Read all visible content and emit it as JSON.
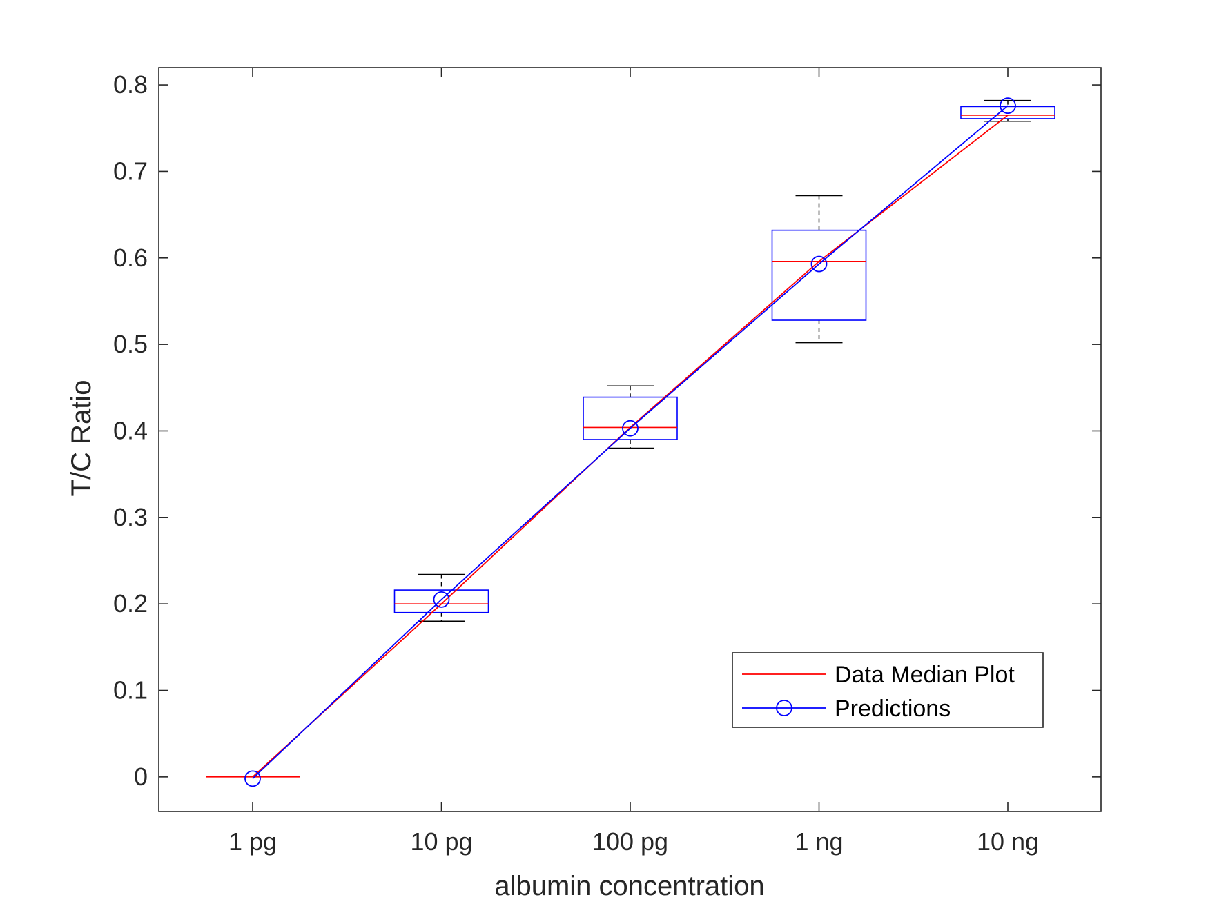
{
  "chart_data": {
    "type": "box",
    "xlabel": "albumin concentration",
    "ylabel": "T/C Ratio",
    "categories": [
      "1 pg",
      "10 pg",
      "100 pg",
      "1 ng",
      "10 ng"
    ],
    "ylim": [
      -0.04,
      0.82
    ],
    "yticks": [
      "0",
      "0.1",
      "0.2",
      "0.3",
      "0.4",
      "0.5",
      "0.6",
      "0.7",
      "0.8"
    ],
    "yticks_values": [
      0,
      0.1,
      0.2,
      0.3,
      0.4,
      0.5,
      0.6,
      0.7,
      0.8
    ],
    "boxes": [
      {
        "category": "1 pg",
        "whisker_low": 0.0,
        "q1": 0.0,
        "median": 0.0,
        "q3": 0.0,
        "whisker_high": 0.0
      },
      {
        "category": "10 pg",
        "whisker_low": 0.18,
        "q1": 0.19,
        "median": 0.2,
        "q3": 0.216,
        "whisker_high": 0.234
      },
      {
        "category": "100 pg",
        "whisker_low": 0.38,
        "q1": 0.39,
        "median": 0.404,
        "q3": 0.439,
        "whisker_high": 0.452
      },
      {
        "category": "1 ng",
        "whisker_low": 0.502,
        "q1": 0.528,
        "median": 0.596,
        "q3": 0.632,
        "whisker_high": 0.672
      },
      {
        "category": "10 ng",
        "whisker_low": 0.758,
        "q1": 0.761,
        "median": 0.765,
        "q3": 0.775,
        "whisker_high": 0.782
      }
    ],
    "series": [
      {
        "name": "Data Median Plot",
        "color": "#ff0000",
        "marker": "none",
        "values": [
          0.0,
          0.2,
          0.404,
          0.596,
          0.765
        ]
      },
      {
        "name": "Predictions",
        "color": "#0000ff",
        "marker": "circle",
        "values": [
          -0.002,
          0.205,
          0.403,
          0.593,
          0.776
        ]
      }
    ],
    "legend": {
      "position": "bottom-right"
    },
    "grid": false,
    "colors": {
      "box": "#0000ff",
      "median": "#ff0000",
      "whisker": "#000000",
      "axis": "#262626"
    }
  }
}
